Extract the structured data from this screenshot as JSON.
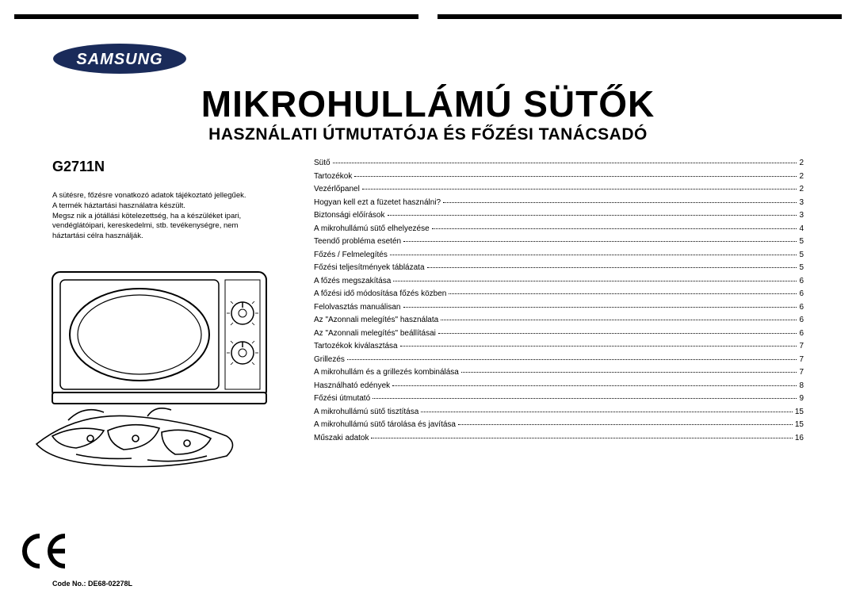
{
  "brand_name": "SAMSUNG",
  "title": "MIKROHULLÁMÚ SÜTŐK",
  "subtitle": "HASZNÁLATI ÚTMUTATÓJA ÉS FŐZÉSI TANÁCSADÓ",
  "model": "G2711N",
  "disclaimer_lines": [
    "A sütésre, főzésre vonatkozó adatok tájékoztató jellegűek.",
    "A termék háztartási használatra készült.",
    "Megsz nik a jótállási kötelezettség, ha a készüléket ipari,",
    "vendéglátóipari, kereskedelmi, stb. tevékenységre, nem",
    "háztartási célra használják."
  ],
  "toc": [
    {
      "label": "Sütő",
      "page": "2"
    },
    {
      "label": "Tartozékok",
      "page": "2"
    },
    {
      "label": "Vezérlőpanel",
      "page": "2"
    },
    {
      "label": "Hogyan kell ezt a füzetet használni?",
      "page": "3"
    },
    {
      "label": "Biztonsági előírások",
      "page": "3"
    },
    {
      "label": "A mikrohullámú sütő elhelyezése",
      "page": "4"
    },
    {
      "label": "Teendő probléma esetén",
      "page": "5"
    },
    {
      "label": "Főzés / Felmelegítés",
      "page": "5"
    },
    {
      "label": "Főzési teljesítmények táblázata",
      "page": "5"
    },
    {
      "label": "A főzés megszakítása",
      "page": "6"
    },
    {
      "label": "A főzési idő módosítása főzés közben",
      "page": "6"
    },
    {
      "label": "Felolvasztás manuálisan",
      "page": "6"
    },
    {
      "label": "Az \"Azonnali melegítés\" használata",
      "page": "6"
    },
    {
      "label": "Az \"Azonnali melegítés\" beállításai",
      "page": "6"
    },
    {
      "label": "Tartozékok kiválasztása",
      "page": "7"
    },
    {
      "label": "Grillezés",
      "page": "7"
    },
    {
      "label": "A mikrohullám és a grillezés kombinálása",
      "page": "7"
    },
    {
      "label": "Használható edények",
      "page": "8"
    },
    {
      "label": "Főzési útmutató",
      "page": "9"
    },
    {
      "label": "A mikrohullámú sütő tisztítása",
      "page": "15"
    },
    {
      "label": "A mikrohullámú sütő tárolása és javítása",
      "page": "15"
    },
    {
      "label": "Műszaki adatok",
      "page": "16"
    }
  ],
  "code_no": "Code No.: DE68-02278L",
  "colors": {
    "text": "#000000",
    "background": "#ffffff",
    "brand_ellipse": "#1a2b5a"
  }
}
